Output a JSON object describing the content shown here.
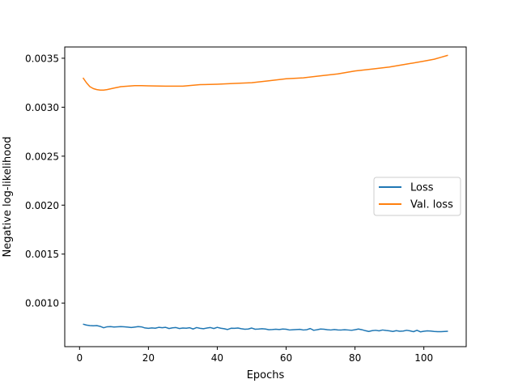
{
  "chart_data": {
    "type": "line",
    "title": "",
    "xlabel": "Epochs",
    "ylabel": "Negative log-likelihood",
    "xlim": [
      -4.3,
      112.3
    ],
    "ylim": [
      0.000555,
      0.003615
    ],
    "xticks": [
      0,
      20,
      40,
      60,
      80,
      100
    ],
    "yticks": [
      0.001,
      0.0015,
      0.002,
      0.0025,
      0.003,
      0.0035
    ],
    "ytick_labels": [
      "0.0010",
      "0.0015",
      "0.0020",
      "0.0025",
      "0.0030",
      "0.0035"
    ],
    "grid": false,
    "legend_position": "center-right",
    "series": [
      {
        "name": "Loss",
        "color": "#1f77b4",
        "x": [
          1,
          2,
          3,
          4,
          5,
          6,
          7,
          8,
          9,
          10,
          11,
          12,
          13,
          14,
          15,
          16,
          17,
          18,
          19,
          20,
          21,
          22,
          23,
          24,
          25,
          26,
          27,
          28,
          29,
          30,
          31,
          32,
          33,
          34,
          35,
          36,
          37,
          38,
          39,
          40,
          41,
          42,
          43,
          44,
          45,
          46,
          47,
          48,
          49,
          50,
          51,
          52,
          53,
          54,
          55,
          56,
          57,
          58,
          59,
          60,
          61,
          62,
          63,
          64,
          65,
          66,
          67,
          68,
          69,
          70,
          71,
          72,
          73,
          74,
          75,
          76,
          77,
          78,
          79,
          80,
          81,
          82,
          83,
          84,
          85,
          86,
          87,
          88,
          89,
          90,
          91,
          92,
          93,
          94,
          95,
          96,
          97,
          98,
          99,
          100,
          101,
          102,
          103,
          104,
          105,
          106,
          107
        ],
        "values": [
          0.000785,
          0.000775,
          0.00077,
          0.000768,
          0.00077,
          0.000762,
          0.000748,
          0.000758,
          0.00076,
          0.000756,
          0.000758,
          0.00076,
          0.000758,
          0.000755,
          0.00075,
          0.000755,
          0.00076,
          0.000757,
          0.000746,
          0.000742,
          0.000746,
          0.000743,
          0.000752,
          0.000748,
          0.000752,
          0.00074,
          0.000747,
          0.00075,
          0.00074,
          0.000745,
          0.000743,
          0.000748,
          0.000735,
          0.00075,
          0.000742,
          0.000738,
          0.000745,
          0.00075,
          0.00074,
          0.000752,
          0.000743,
          0.000738,
          0.00073,
          0.000743,
          0.000742,
          0.000745,
          0.000738,
          0.000733,
          0.000735,
          0.000745,
          0.000733,
          0.000735,
          0.000738,
          0.000735,
          0.000728,
          0.00073,
          0.000733,
          0.00073,
          0.000735,
          0.000733,
          0.000725,
          0.000728,
          0.00073,
          0.000732,
          0.000725,
          0.000728,
          0.00074,
          0.000722,
          0.000728,
          0.000735,
          0.000733,
          0.000728,
          0.000725,
          0.00073,
          0.000726,
          0.000725,
          0.000728,
          0.000725,
          0.000722,
          0.000728,
          0.000735,
          0.000728,
          0.000718,
          0.00071,
          0.000718,
          0.000722,
          0.000716,
          0.000725,
          0.00072,
          0.000716,
          0.00071,
          0.000718,
          0.000712,
          0.000714,
          0.000722,
          0.000716,
          0.000708,
          0.000722,
          0.000706,
          0.000712,
          0.000716,
          0.000714,
          0.00071,
          0.000708,
          0.000708,
          0.00071,
          0.000712
        ]
      },
      {
        "name": "Val. loss",
        "color": "#ff7f0e",
        "x": [
          1,
          2,
          3,
          4,
          5,
          6,
          7,
          8,
          10,
          12,
          14,
          16,
          18,
          20,
          25,
          30,
          35,
          40,
          45,
          50,
          55,
          60,
          65,
          70,
          75,
          80,
          85,
          90,
          95,
          100,
          103,
          105,
          107
        ],
        "values": [
          0.0033,
          0.00325,
          0.00321,
          0.00319,
          0.00318,
          0.003175,
          0.003175,
          0.00318,
          0.003195,
          0.00321,
          0.003215,
          0.00322,
          0.00322,
          0.003218,
          0.003215,
          0.003215,
          0.00323,
          0.003235,
          0.003243,
          0.00325,
          0.00327,
          0.00329,
          0.0033,
          0.00332,
          0.00334,
          0.00337,
          0.00339,
          0.00341,
          0.00344,
          0.00347,
          0.00349,
          0.00351,
          0.00353
        ]
      }
    ]
  }
}
